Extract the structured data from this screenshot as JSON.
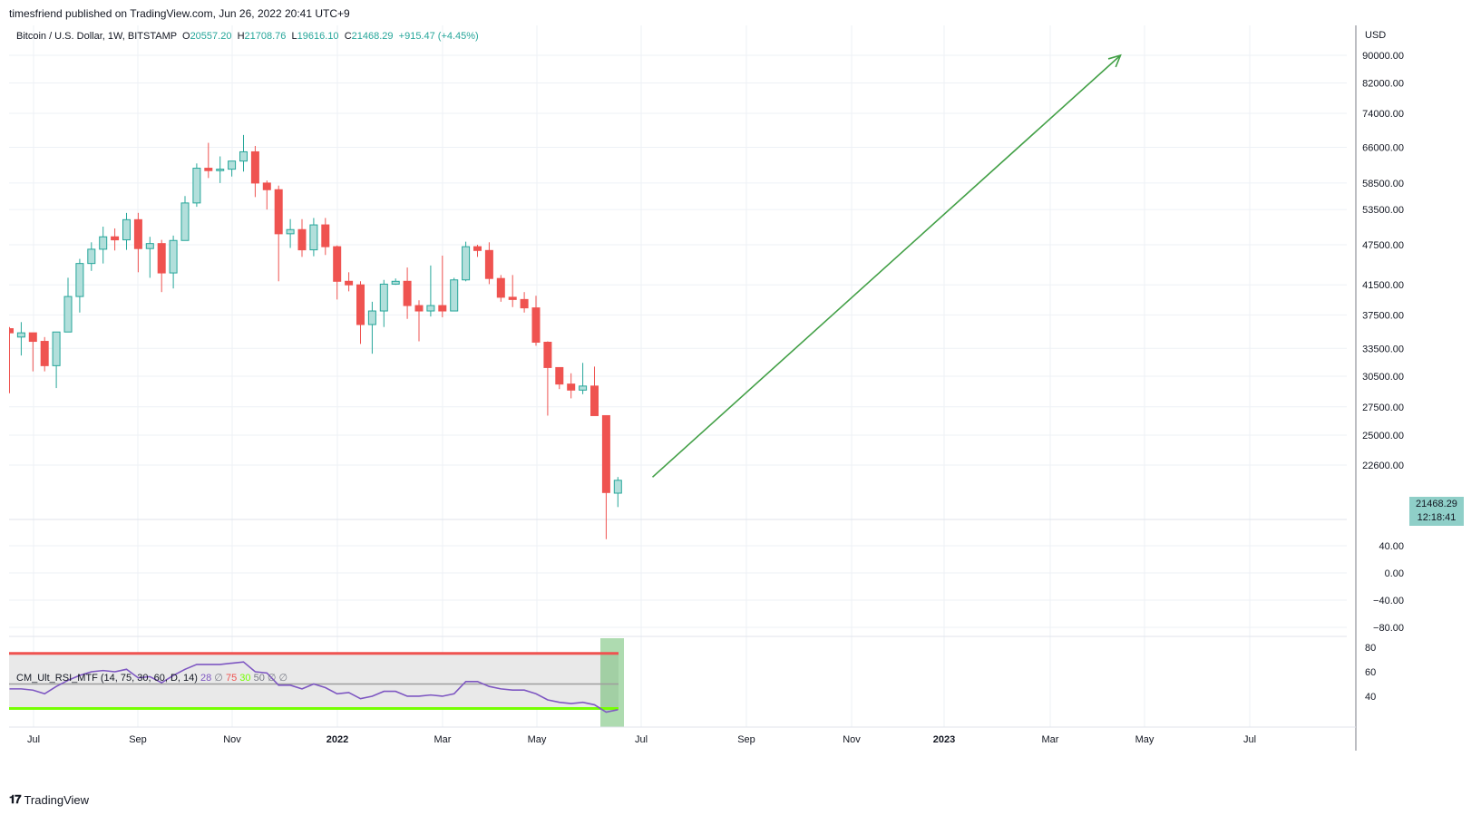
{
  "header": {
    "publisher": "timesfriend published on TradingView.com, Jun 26, 2022 20:41 UTC+9"
  },
  "legend": {
    "symbol": "Bitcoin / U.S. Dollar, 1W, BITSTAMP",
    "o_label": "O",
    "o": "20557.20",
    "h_label": "H",
    "h": "21708.76",
    "l_label": "L",
    "l": "19616.10",
    "c_label": "C",
    "c": "21468.29",
    "change": "+915.47 (+4.45%)"
  },
  "indicator": {
    "name": "CM_Ult_RSI_MTF (14, 75, 30, 60, D, 14)",
    "v1": "28",
    "v2": "∅",
    "v3": "75",
    "v4": "30",
    "v5": "50",
    "v6": "∅",
    "v7": "∅"
  },
  "price_tag": {
    "price": "21468.29",
    "countdown": "12:18:41"
  },
  "footer": {
    "brand": "TradingView"
  },
  "colors": {
    "up": "#26a69a",
    "up_fill": "#b2dfdb",
    "down": "#ef5350",
    "arrow": "#43a047",
    "rsi": "#7e57c2",
    "rsi_upper": "#ef5350",
    "rsi_lower": "#76ff03",
    "highlight": "#4caf50"
  },
  "chart_data": {
    "type": "candlestick",
    "currency": "USD",
    "price_axis_ticks": [
      "90000.00",
      "82000.00",
      "74000.00",
      "66000.00",
      "58500.00",
      "53500.00",
      "47500.00",
      "41500.00",
      "37500.00",
      "33500.00",
      "30500.00",
      "27500.00",
      "25000.00",
      "22600.00"
    ],
    "lower_axis_ticks": [
      "40.00",
      "0.00",
      "−40.00",
      "−80.00"
    ],
    "rsi_axis_ticks": [
      "80",
      "60",
      "40"
    ],
    "x_ticks": [
      "Jul",
      "Sep",
      "Nov",
      "2022",
      "Mar",
      "May",
      "Jul",
      "Sep",
      "Nov",
      "2023",
      "Mar",
      "May",
      "Jul"
    ],
    "candles": [
      {
        "o": 35800,
        "h": 36000,
        "l": 28800,
        "c": 35300
      },
      {
        "o": 34800,
        "h": 36600,
        "l": 32700,
        "c": 35300
      },
      {
        "o": 35300,
        "h": 35300,
        "l": 31000,
        "c": 34300
      },
      {
        "o": 34300,
        "h": 34800,
        "l": 31000,
        "c": 31600
      },
      {
        "o": 31600,
        "h": 35400,
        "l": 29300,
        "c": 35400
      },
      {
        "o": 35400,
        "h": 42500,
        "l": 35400,
        "c": 39900
      },
      {
        "o": 39900,
        "h": 45300,
        "l": 37800,
        "c": 44600
      },
      {
        "o": 44600,
        "h": 47900,
        "l": 43500,
        "c": 46800
      },
      {
        "o": 46800,
        "h": 50500,
        "l": 44600,
        "c": 48800
      },
      {
        "o": 48800,
        "h": 50200,
        "l": 46600,
        "c": 48300
      },
      {
        "o": 48300,
        "h": 52900,
        "l": 46700,
        "c": 51700
      },
      {
        "o": 51700,
        "h": 52900,
        "l": 43300,
        "c": 46900
      },
      {
        "o": 46900,
        "h": 48800,
        "l": 42500,
        "c": 47700
      },
      {
        "o": 47700,
        "h": 48300,
        "l": 40500,
        "c": 43200
      },
      {
        "o": 43200,
        "h": 49000,
        "l": 41000,
        "c": 48200
      },
      {
        "o": 48200,
        "h": 56000,
        "l": 48200,
        "c": 54700
      },
      {
        "o": 54700,
        "h": 62500,
        "l": 54000,
        "c": 61500
      },
      {
        "o": 61500,
        "h": 67000,
        "l": 59500,
        "c": 61000
      },
      {
        "o": 61000,
        "h": 64000,
        "l": 58500,
        "c": 61300
      },
      {
        "o": 61300,
        "h": 63000,
        "l": 59800,
        "c": 63000
      },
      {
        "o": 63000,
        "h": 68800,
        "l": 60800,
        "c": 65000
      },
      {
        "o": 65000,
        "h": 66300,
        "l": 55800,
        "c": 58500
      },
      {
        "o": 58500,
        "h": 59000,
        "l": 53500,
        "c": 57200
      },
      {
        "o": 57200,
        "h": 58000,
        "l": 42000,
        "c": 49300
      },
      {
        "o": 49300,
        "h": 51800,
        "l": 47000,
        "c": 50000
      },
      {
        "o": 50000,
        "h": 51800,
        "l": 45600,
        "c": 46700
      },
      {
        "o": 46700,
        "h": 52000,
        "l": 45700,
        "c": 50800
      },
      {
        "o": 50800,
        "h": 52000,
        "l": 45900,
        "c": 47200
      },
      {
        "o": 47200,
        "h": 47400,
        "l": 39500,
        "c": 42000
      },
      {
        "o": 42000,
        "h": 43300,
        "l": 40600,
        "c": 41500
      },
      {
        "o": 41500,
        "h": 42000,
        "l": 34000,
        "c": 36300
      },
      {
        "o": 36300,
        "h": 39200,
        "l": 32900,
        "c": 38000
      },
      {
        "o": 38000,
        "h": 42200,
        "l": 36000,
        "c": 41600
      },
      {
        "o": 41600,
        "h": 42400,
        "l": 41500,
        "c": 42000
      },
      {
        "o": 42000,
        "h": 44000,
        "l": 37000,
        "c": 38700
      },
      {
        "o": 38700,
        "h": 39400,
        "l": 34300,
        "c": 38000
      },
      {
        "o": 38000,
        "h": 44300,
        "l": 37300,
        "c": 38700
      },
      {
        "o": 38700,
        "h": 45800,
        "l": 37200,
        "c": 38000
      },
      {
        "o": 38000,
        "h": 42500,
        "l": 38000,
        "c": 42200
      },
      {
        "o": 42200,
        "h": 48000,
        "l": 42000,
        "c": 47200
      },
      {
        "o": 47200,
        "h": 47500,
        "l": 45600,
        "c": 46600
      },
      {
        "o": 46600,
        "h": 47900,
        "l": 41600,
        "c": 42400
      },
      {
        "o": 42400,
        "h": 42900,
        "l": 39200,
        "c": 39800
      },
      {
        "o": 39800,
        "h": 42900,
        "l": 38500,
        "c": 39500
      },
      {
        "o": 39500,
        "h": 40500,
        "l": 37800,
        "c": 38400
      },
      {
        "o": 38400,
        "h": 40000,
        "l": 33800,
        "c": 34200
      },
      {
        "o": 34200,
        "h": 34300,
        "l": 26700,
        "c": 31400
      },
      {
        "o": 31400,
        "h": 31400,
        "l": 29200,
        "c": 29700
      },
      {
        "o": 29700,
        "h": 30800,
        "l": 28300,
        "c": 29100
      },
      {
        "o": 29100,
        "h": 31900,
        "l": 28700,
        "c": 29500
      },
      {
        "o": 29500,
        "h": 31500,
        "l": 26700,
        "c": 26700
      },
      {
        "o": 26700,
        "h": 26700,
        "l": 17600,
        "c": 20600
      },
      {
        "o": 20557.2,
        "h": 21708.76,
        "l": 19616.1,
        "c": 21468.29
      }
    ],
    "arrow": {
      "from": {
        "week": 55,
        "price": 21700
      },
      "to": {
        "week": 95,
        "price": 90000
      }
    },
    "rsi": [
      46,
      46,
      45,
      42,
      48,
      53,
      57,
      60,
      61,
      60,
      62,
      55,
      56,
      51,
      57,
      62,
      66,
      66,
      66,
      67,
      68,
      60,
      59,
      49,
      49,
      46,
      50,
      47,
      42,
      43,
      38,
      40,
      44,
      44,
      40,
      40,
      41,
      40,
      42,
      52,
      52,
      48,
      46,
      45,
      45,
      42,
      37,
      35,
      34,
      35,
      33,
      27,
      29
    ],
    "rsi_levels": {
      "upper": 75,
      "mid": 50,
      "lower": 30
    }
  }
}
